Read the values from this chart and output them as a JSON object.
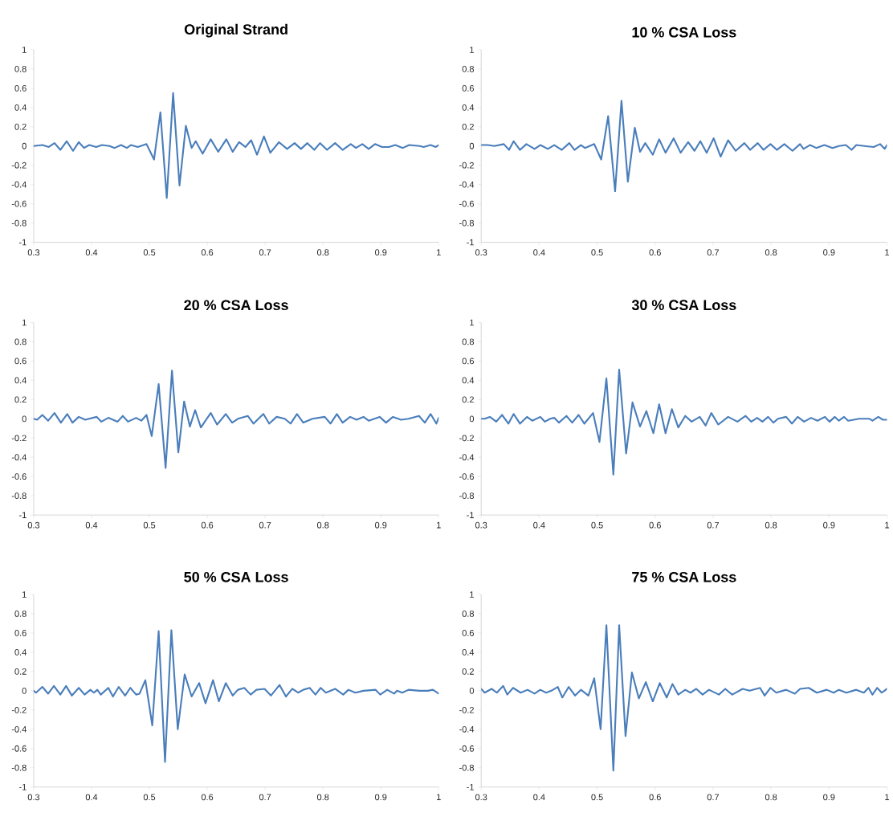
{
  "chart_data": [
    {
      "type": "line",
      "title": "Original Strand",
      "xlim": [
        0.3,
        1
      ],
      "ylim": [
        -1,
        1
      ],
      "xticks": [
        0.3,
        0.4,
        0.5,
        0.6,
        0.7,
        0.8,
        0.9,
        1
      ],
      "yticks": [
        -1,
        -0.8,
        -0.6,
        -0.4,
        -0.2,
        0,
        0.2,
        0.4,
        0.6,
        0.8,
        1
      ],
      "series": [
        {
          "color": "#4a7ebb",
          "x": [
            0.3,
            0.315,
            0.326,
            0.336,
            0.346,
            0.357,
            0.368,
            0.378,
            0.387,
            0.396,
            0.408,
            0.418,
            0.431,
            0.44,
            0.451,
            0.461,
            0.468,
            0.48,
            0.495,
            0.508,
            0.519,
            0.53,
            0.541,
            0.552,
            0.563,
            0.573,
            0.58,
            0.592,
            0.606,
            0.619,
            0.633,
            0.644,
            0.655,
            0.666,
            0.676,
            0.686,
            0.698,
            0.709,
            0.724,
            0.738,
            0.751,
            0.762,
            0.773,
            0.785,
            0.795,
            0.807,
            0.821,
            0.834,
            0.848,
            0.857,
            0.868,
            0.879,
            0.89,
            0.902,
            0.914,
            0.925,
            0.938,
            0.949,
            0.967,
            0.974,
            0.986,
            0.995,
            1.0
          ],
          "values": [
            0.0,
            0.01,
            -0.01,
            0.03,
            -0.04,
            0.05,
            -0.05,
            0.04,
            -0.02,
            0.01,
            -0.01,
            0.01,
            0.0,
            -0.02,
            0.01,
            -0.02,
            0.01,
            -0.01,
            0.02,
            -0.14,
            0.35,
            -0.54,
            0.55,
            -0.41,
            0.21,
            -0.02,
            0.05,
            -0.08,
            0.07,
            -0.06,
            0.07,
            -0.06,
            0.04,
            -0.01,
            0.06,
            -0.09,
            0.1,
            -0.07,
            0.04,
            -0.03,
            0.03,
            -0.03,
            0.03,
            -0.04,
            0.03,
            -0.04,
            0.03,
            -0.04,
            0.02,
            -0.02,
            0.02,
            -0.03,
            0.02,
            -0.01,
            -0.01,
            0.01,
            -0.02,
            0.01,
            0.0,
            -0.01,
            0.01,
            -0.01,
            0.01
          ]
        }
      ]
    },
    {
      "type": "line",
      "title": "10 % CSA Loss",
      "xlim": [
        0.3,
        1
      ],
      "ylim": [
        -1,
        1
      ],
      "xticks": [
        0.3,
        0.4,
        0.5,
        0.6,
        0.7,
        0.8,
        0.9,
        1
      ],
      "yticks": [
        -1,
        -0.8,
        -0.6,
        -0.4,
        -0.2,
        0,
        0.2,
        0.4,
        0.6,
        0.8,
        1
      ],
      "series": [
        {
          "color": "#4a7ebb",
          "x": [
            0.3,
            0.311,
            0.323,
            0.339,
            0.348,
            0.356,
            0.367,
            0.378,
            0.392,
            0.402,
            0.415,
            0.426,
            0.439,
            0.452,
            0.461,
            0.472,
            0.479,
            0.495,
            0.507,
            0.519,
            0.531,
            0.542,
            0.553,
            0.565,
            0.574,
            0.583,
            0.596,
            0.607,
            0.618,
            0.632,
            0.644,
            0.657,
            0.668,
            0.678,
            0.689,
            0.701,
            0.713,
            0.726,
            0.739,
            0.754,
            0.764,
            0.777,
            0.787,
            0.799,
            0.81,
            0.823,
            0.837,
            0.85,
            0.856,
            0.867,
            0.878,
            0.892,
            0.906,
            0.917,
            0.929,
            0.939,
            0.947,
            0.961,
            0.977,
            0.988,
            0.996,
            1.0
          ],
          "values": [
            0.01,
            0.01,
            0.0,
            0.02,
            -0.04,
            0.05,
            -0.04,
            0.02,
            -0.03,
            0.01,
            -0.03,
            0.01,
            -0.04,
            0.03,
            -0.04,
            0.01,
            -0.02,
            0.02,
            -0.14,
            0.31,
            -0.47,
            0.47,
            -0.37,
            0.19,
            -0.06,
            0.03,
            -0.09,
            0.07,
            -0.07,
            0.08,
            -0.07,
            0.04,
            -0.05,
            0.05,
            -0.07,
            0.08,
            -0.11,
            0.06,
            -0.05,
            0.03,
            -0.04,
            0.03,
            -0.04,
            0.02,
            -0.04,
            0.02,
            -0.05,
            0.02,
            -0.03,
            0.01,
            -0.02,
            0.01,
            -0.02,
            0.0,
            0.01,
            -0.04,
            0.01,
            0.0,
            -0.01,
            0.02,
            -0.03,
            0.01
          ]
        }
      ]
    },
    {
      "type": "line",
      "title": "20 % CSA Loss",
      "xlim": [
        0.3,
        1
      ],
      "ylim": [
        -1,
        1
      ],
      "xticks": [
        0.3,
        0.4,
        0.5,
        0.6,
        0.7,
        0.8,
        0.9,
        1
      ],
      "yticks": [
        -1,
        -0.8,
        -0.6,
        -0.4,
        -0.2,
        0,
        0.2,
        0.4,
        0.6,
        0.8,
        1
      ],
      "series": [
        {
          "color": "#4a7ebb",
          "x": [
            0.3,
            0.306,
            0.315,
            0.325,
            0.336,
            0.347,
            0.358,
            0.367,
            0.378,
            0.389,
            0.409,
            0.417,
            0.429,
            0.445,
            0.454,
            0.463,
            0.477,
            0.486,
            0.495,
            0.504,
            0.516,
            0.528,
            0.539,
            0.55,
            0.56,
            0.57,
            0.579,
            0.589,
            0.606,
            0.617,
            0.632,
            0.643,
            0.653,
            0.67,
            0.68,
            0.697,
            0.707,
            0.72,
            0.734,
            0.744,
            0.755,
            0.766,
            0.782,
            0.803,
            0.813,
            0.824,
            0.834,
            0.847,
            0.858,
            0.87,
            0.879,
            0.898,
            0.909,
            0.921,
            0.935,
            0.948,
            0.966,
            0.976,
            0.986,
            0.996,
            1.0
          ],
          "values": [
            0.0,
            -0.01,
            0.04,
            -0.02,
            0.06,
            -0.04,
            0.05,
            -0.04,
            0.02,
            -0.01,
            0.02,
            -0.03,
            0.01,
            -0.03,
            0.03,
            -0.03,
            0.01,
            -0.02,
            0.04,
            -0.18,
            0.36,
            -0.51,
            0.5,
            -0.35,
            0.18,
            -0.08,
            0.09,
            -0.09,
            0.06,
            -0.06,
            0.05,
            -0.04,
            0.0,
            0.03,
            -0.05,
            0.05,
            -0.05,
            0.02,
            0.0,
            -0.05,
            0.05,
            -0.04,
            0.0,
            0.02,
            -0.05,
            0.05,
            -0.04,
            0.02,
            -0.01,
            0.02,
            -0.02,
            0.02,
            -0.04,
            0.02,
            -0.01,
            0.0,
            0.03,
            -0.04,
            0.05,
            -0.05,
            0.01
          ]
        }
      ]
    },
    {
      "type": "line",
      "title": "30 % CSA Loss",
      "xlim": [
        0.3,
        1
      ],
      "ylim": [
        -1,
        1
      ],
      "xticks": [
        0.3,
        0.4,
        0.5,
        0.6,
        0.7,
        0.8,
        0.9,
        1
      ],
      "yticks": [
        -1,
        -0.8,
        -0.6,
        -0.4,
        -0.2,
        0,
        0.2,
        0.4,
        0.6,
        0.8,
        1
      ],
      "series": [
        {
          "color": "#4a7ebb",
          "x": [
            0.3,
            0.306,
            0.315,
            0.326,
            0.336,
            0.347,
            0.356,
            0.367,
            0.379,
            0.388,
            0.402,
            0.41,
            0.419,
            0.426,
            0.434,
            0.447,
            0.457,
            0.468,
            0.478,
            0.493,
            0.504,
            0.516,
            0.528,
            0.538,
            0.55,
            0.561,
            0.574,
            0.585,
            0.597,
            0.607,
            0.618,
            0.629,
            0.64,
            0.652,
            0.663,
            0.677,
            0.687,
            0.697,
            0.709,
            0.726,
            0.742,
            0.756,
            0.766,
            0.776,
            0.785,
            0.795,
            0.804,
            0.812,
            0.826,
            0.836,
            0.846,
            0.857,
            0.869,
            0.88,
            0.893,
            0.901,
            0.91,
            0.917,
            0.926,
            0.933,
            0.952,
            0.97,
            0.975,
            0.985,
            0.993,
            1.0
          ],
          "values": [
            0.0,
            0.0,
            0.02,
            -0.03,
            0.04,
            -0.05,
            0.05,
            -0.05,
            0.02,
            -0.02,
            0.02,
            -0.03,
            0.0,
            0.01,
            -0.04,
            0.03,
            -0.04,
            0.04,
            -0.05,
            0.06,
            -0.24,
            0.42,
            -0.58,
            0.51,
            -0.36,
            0.17,
            -0.08,
            0.08,
            -0.15,
            0.15,
            -0.15,
            0.1,
            -0.09,
            0.03,
            -0.03,
            0.02,
            -0.07,
            0.06,
            -0.06,
            0.02,
            -0.03,
            0.03,
            -0.03,
            0.01,
            -0.03,
            0.02,
            -0.04,
            0.0,
            0.02,
            -0.05,
            0.02,
            -0.03,
            0.01,
            -0.02,
            0.02,
            -0.03,
            0.02,
            -0.02,
            0.02,
            -0.02,
            0.0,
            0.0,
            -0.02,
            0.02,
            -0.01,
            -0.01
          ]
        }
      ]
    },
    {
      "type": "line",
      "title": "50 % CSA Loss",
      "xlim": [
        0.3,
        1
      ],
      "ylim": [
        -1,
        1
      ],
      "xticks": [
        0.3,
        0.4,
        0.5,
        0.6,
        0.7,
        0.8,
        0.9,
        1
      ],
      "yticks": [
        -1,
        -0.8,
        -0.6,
        -0.4,
        -0.2,
        0,
        0.2,
        0.4,
        0.6,
        0.8,
        1
      ],
      "series": [
        {
          "color": "#4a7ebb",
          "x": [
            0.3,
            0.304,
            0.315,
            0.325,
            0.335,
            0.346,
            0.356,
            0.366,
            0.378,
            0.388,
            0.398,
            0.404,
            0.41,
            0.416,
            0.429,
            0.437,
            0.447,
            0.458,
            0.467,
            0.477,
            0.483,
            0.493,
            0.505,
            0.516,
            0.527,
            0.538,
            0.549,
            0.561,
            0.573,
            0.586,
            0.597,
            0.61,
            0.62,
            0.632,
            0.644,
            0.653,
            0.664,
            0.675,
            0.685,
            0.699,
            0.71,
            0.725,
            0.736,
            0.747,
            0.757,
            0.766,
            0.777,
            0.787,
            0.796,
            0.805,
            0.821,
            0.835,
            0.844,
            0.856,
            0.87,
            0.891,
            0.899,
            0.911,
            0.923,
            0.928,
            0.937,
            0.948,
            0.967,
            0.981,
            0.99,
            1.0
          ],
          "values": [
            0.0,
            -0.02,
            0.04,
            -0.03,
            0.05,
            -0.04,
            0.05,
            -0.05,
            0.03,
            -0.04,
            0.01,
            -0.02,
            0.01,
            -0.04,
            0.03,
            -0.06,
            0.04,
            -0.05,
            0.03,
            -0.04,
            -0.03,
            0.11,
            -0.36,
            0.62,
            -0.74,
            0.63,
            -0.4,
            0.17,
            -0.06,
            0.08,
            -0.13,
            0.11,
            -0.11,
            0.08,
            -0.05,
            0.01,
            0.03,
            -0.04,
            0.01,
            0.02,
            -0.05,
            0.06,
            -0.06,
            0.02,
            -0.02,
            0.01,
            0.03,
            -0.04,
            0.03,
            -0.02,
            0.02,
            -0.04,
            0.01,
            -0.02,
            0.0,
            0.01,
            -0.04,
            0.01,
            -0.03,
            0.0,
            -0.02,
            0.01,
            0.0,
            0.0,
            0.01,
            -0.03
          ]
        }
      ]
    },
    {
      "type": "line",
      "title": "75 % CSA Loss",
      "xlim": [
        0.3,
        1
      ],
      "ylim": [
        -1,
        1
      ],
      "xticks": [
        0.3,
        0.4,
        0.5,
        0.6,
        0.7,
        0.8,
        0.9,
        1
      ],
      "yticks": [
        -1,
        -0.8,
        -0.6,
        -0.4,
        -0.2,
        0,
        0.2,
        0.4,
        0.6,
        0.8,
        1
      ],
      "series": [
        {
          "color": "#4a7ebb",
          "x": [
            0.3,
            0.306,
            0.318,
            0.327,
            0.338,
            0.345,
            0.355,
            0.368,
            0.38,
            0.392,
            0.402,
            0.412,
            0.421,
            0.432,
            0.44,
            0.451,
            0.462,
            0.472,
            0.485,
            0.495,
            0.506,
            0.516,
            0.528,
            0.538,
            0.549,
            0.56,
            0.572,
            0.584,
            0.596,
            0.608,
            0.62,
            0.63,
            0.64,
            0.652,
            0.661,
            0.671,
            0.682,
            0.693,
            0.71,
            0.721,
            0.733,
            0.751,
            0.763,
            0.781,
            0.789,
            0.799,
            0.809,
            0.826,
            0.841,
            0.85,
            0.865,
            0.879,
            0.896,
            0.908,
            0.917,
            0.93,
            0.947,
            0.96,
            0.968,
            0.975,
            0.983,
            0.991,
            1.0
          ],
          "values": [
            0.02,
            -0.02,
            0.02,
            -0.02,
            0.05,
            -0.04,
            0.03,
            -0.02,
            0.01,
            -0.03,
            0.01,
            -0.02,
            0.0,
            0.04,
            -0.07,
            0.04,
            -0.05,
            0.01,
            -0.05,
            0.13,
            -0.4,
            0.68,
            -0.83,
            0.68,
            -0.47,
            0.19,
            -0.08,
            0.09,
            -0.11,
            0.08,
            -0.07,
            0.07,
            -0.04,
            0.01,
            -0.02,
            0.02,
            -0.04,
            0.01,
            -0.04,
            0.02,
            -0.04,
            0.02,
            0.0,
            0.03,
            -0.05,
            0.03,
            -0.02,
            0.01,
            -0.03,
            0.02,
            0.03,
            -0.02,
            0.01,
            -0.02,
            0.01,
            -0.02,
            0.01,
            -0.02,
            0.03,
            -0.04,
            0.03,
            -0.02,
            0.02
          ]
        }
      ]
    }
  ]
}
